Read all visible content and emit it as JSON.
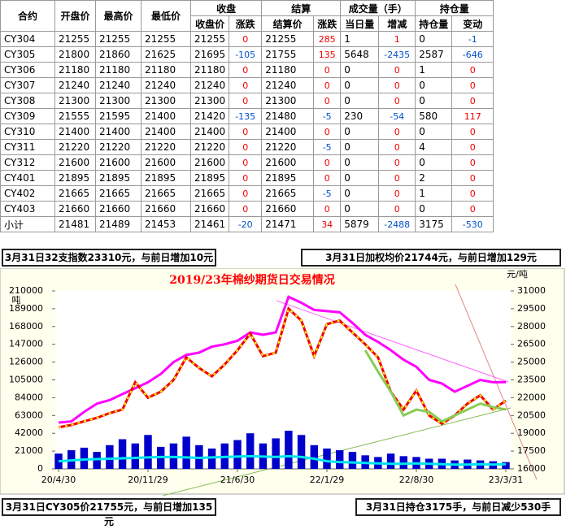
{
  "table": {
    "groups": [
      "合约",
      "开盘价",
      "最高价",
      "最低价",
      "收盘",
      "结算",
      "成交量（手）",
      "持仓量"
    ],
    "subheaders": [
      "收盘价",
      "涨跌",
      "结算价",
      "涨跌",
      "当日量",
      "增减",
      "持仓量",
      "变动"
    ],
    "rows": [
      [
        "CY304",
        21255,
        21255,
        21255,
        21255,
        0,
        21255,
        285,
        1,
        1,
        0,
        -1
      ],
      [
        "CY305",
        21800,
        21860,
        21625,
        21695,
        -105,
        21755,
        135,
        5648,
        -2435,
        2587,
        -646
      ],
      [
        "CY306",
        21180,
        21180,
        21180,
        21180,
        0,
        21180,
        0,
        0,
        0,
        1,
        0
      ],
      [
        "CY307",
        21240,
        21240,
        21240,
        21240,
        0,
        21240,
        0,
        0,
        0,
        0,
        0
      ],
      [
        "CY308",
        21300,
        21300,
        21300,
        21300,
        0,
        21300,
        0,
        0,
        0,
        0,
        0
      ],
      [
        "CY309",
        21555,
        21595,
        21400,
        21420,
        -135,
        21480,
        -5,
        230,
        -54,
        580,
        117
      ],
      [
        "CY310",
        21400,
        21400,
        21400,
        21400,
        0,
        21400,
        0,
        0,
        0,
        0,
        0
      ],
      [
        "CY311",
        21220,
        21220,
        21220,
        21220,
        0,
        21220,
        -5,
        0,
        0,
        4,
        0
      ],
      [
        "CY312",
        21600,
        21600,
        21600,
        21600,
        0,
        21600,
        0,
        0,
        0,
        0,
        0
      ],
      [
        "CY401",
        21895,
        21895,
        21895,
        21895,
        0,
        21895,
        0,
        0,
        0,
        2,
        0
      ],
      [
        "CY402",
        21665,
        21665,
        21665,
        21665,
        0,
        21665,
        -5,
        0,
        0,
        1,
        0
      ],
      [
        "CY403",
        21660,
        21660,
        21660,
        21660,
        0,
        21660,
        0,
        0,
        0,
        0,
        0
      ],
      [
        "小计",
        21481,
        21489,
        21453,
        21461,
        -20,
        21471,
        34,
        5879,
        -2488,
        3175,
        -530
      ]
    ]
  },
  "notes": [
    "3月31日32支指数23310元，与前日增加10元",
    "3月31日加权均价21744元，与前日增加129元",
    "3月31日CY305价21755元，与前日增加135元",
    "3月31日持仓3175手，与前日减少530手"
  ],
  "chart_data": {
    "type": "combo",
    "title": "2019/23年棉纱期货日交易情况",
    "y_label": "吨",
    "y2_label": "元/吨",
    "categories": [
      "20/4/30",
      null,
      null,
      null,
      null,
      null,
      null,
      "20/11/29",
      null,
      null,
      null,
      null,
      null,
      null,
      "21/6/30",
      null,
      null,
      null,
      null,
      null,
      null,
      "22/1/29",
      null,
      null,
      null,
      null,
      null,
      null,
      "22/8/30",
      null,
      null,
      null,
      null,
      null,
      null,
      "23/3/31"
    ],
    "ylim": [
      0,
      210000
    ],
    "yticks": [
      0,
      21000,
      42000,
      63000,
      84000,
      105000,
      126000,
      147000,
      168000,
      189000,
      210000
    ],
    "y2lim": [
      16000,
      31000
    ],
    "y2ticks": [
      16000,
      17500,
      19000,
      20500,
      22000,
      23500,
      25000,
      26500,
      28000,
      29500,
      31000
    ],
    "series": [
      {
        "type": "bar",
        "color": "#0000cc",
        "values": [
          18000,
          22000,
          25000,
          20000,
          28000,
          35000,
          30000,
          40000,
          26000,
          30000,
          38000,
          28000,
          24000,
          30000,
          34000,
          42000,
          30000,
          36000,
          45000,
          40000,
          28000,
          24000,
          22000,
          20000,
          16000,
          14000,
          18000,
          15000,
          14000,
          12000,
          12000,
          10000,
          11000,
          10000,
          9000,
          8000
        ]
      },
      {
        "type": "line",
        "color": "#00e5ee",
        "values": [
          9000,
          10000,
          11000,
          11500,
          12000,
          12500,
          13000,
          13500,
          14000,
          14000,
          13500,
          13000,
          13500,
          14000,
          14500,
          15000,
          14500,
          14000,
          15000,
          14000,
          12000,
          9000,
          8000,
          7500,
          7000,
          6500,
          6000,
          6000,
          6500,
          6000,
          5500,
          5000,
          5000,
          5500,
          5000,
          5500
        ]
      },
      {
        "type": "line",
        "axis": "y2",
        "color": "#ff00ff",
        "values": [
          19900,
          20000,
          20800,
          21500,
          21800,
          22300,
          22800,
          23300,
          24000,
          25000,
          25600,
          25800,
          26300,
          26500,
          26800,
          27500,
          27300,
          27500,
          30500,
          30000,
          29400,
          29300,
          29200,
          28300,
          27300,
          26700,
          26000,
          25200,
          24600,
          23500,
          23200,
          22500,
          23000,
          23500,
          23300,
          23310
        ]
      },
      {
        "type": "line",
        "axis": "y2",
        "color": "#ee0000",
        "marker_color": "#ffff00",
        "values": [
          19500,
          19700,
          20000,
          20300,
          20700,
          21000,
          23300,
          22000,
          22500,
          23500,
          25400,
          24500,
          23800,
          24800,
          26000,
          27400,
          25500,
          25800,
          29500,
          28500,
          25500,
          28200,
          28500,
          27500,
          26500,
          25400,
          22500,
          21000,
          22600,
          20500,
          19800,
          20500,
          21500,
          22200,
          21000,
          21755
        ]
      },
      {
        "type": "line",
        "axis": "y2",
        "color": "#88cc55",
        "values": [
          null,
          null,
          null,
          null,
          null,
          null,
          null,
          null,
          null,
          null,
          null,
          null,
          null,
          null,
          null,
          null,
          null,
          null,
          null,
          null,
          null,
          null,
          null,
          null,
          26000,
          24200,
          22500,
          20500,
          21000,
          20800,
          20000,
          20500,
          21000,
          21500,
          21200,
          21000
        ]
      }
    ]
  }
}
